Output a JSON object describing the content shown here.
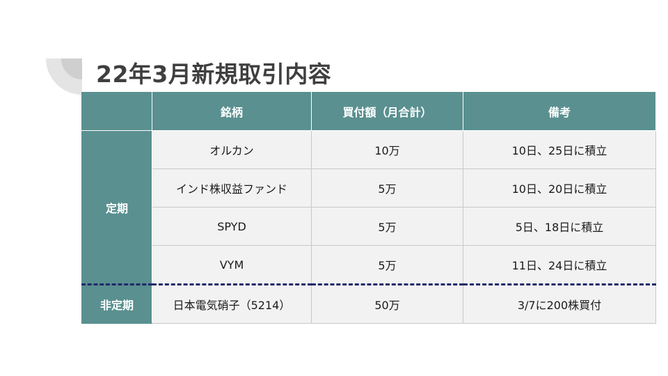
{
  "slide": {
    "title": "22年3月新規取引内容"
  },
  "table": {
    "headers": [
      "",
      "銘柄",
      "買付額（月合計）",
      "備考"
    ],
    "groups": [
      {
        "category": "定期",
        "rows": [
          {
            "name": "オルカン",
            "amount": "10万",
            "note": "10日、25日に積立"
          },
          {
            "name": "インド株収益ファンド",
            "amount": "5万",
            "note": "10日、20日に積立"
          },
          {
            "name": "SPYD",
            "amount": "5万",
            "note": "5日、18日に積立"
          },
          {
            "name": "VYM",
            "amount": "5万",
            "note": "11日、24日に積立"
          }
        ]
      },
      {
        "category": "非定期",
        "rows": [
          {
            "name": "日本電気硝子（5214）",
            "amount": "50万",
            "note": "3/7に200株買付"
          }
        ]
      }
    ]
  },
  "colors": {
    "header_bg": "#5a9090",
    "cell_bg": "#f2f2f2",
    "title_text": "#3f3f3f",
    "separator": "#1f2a6b"
  }
}
